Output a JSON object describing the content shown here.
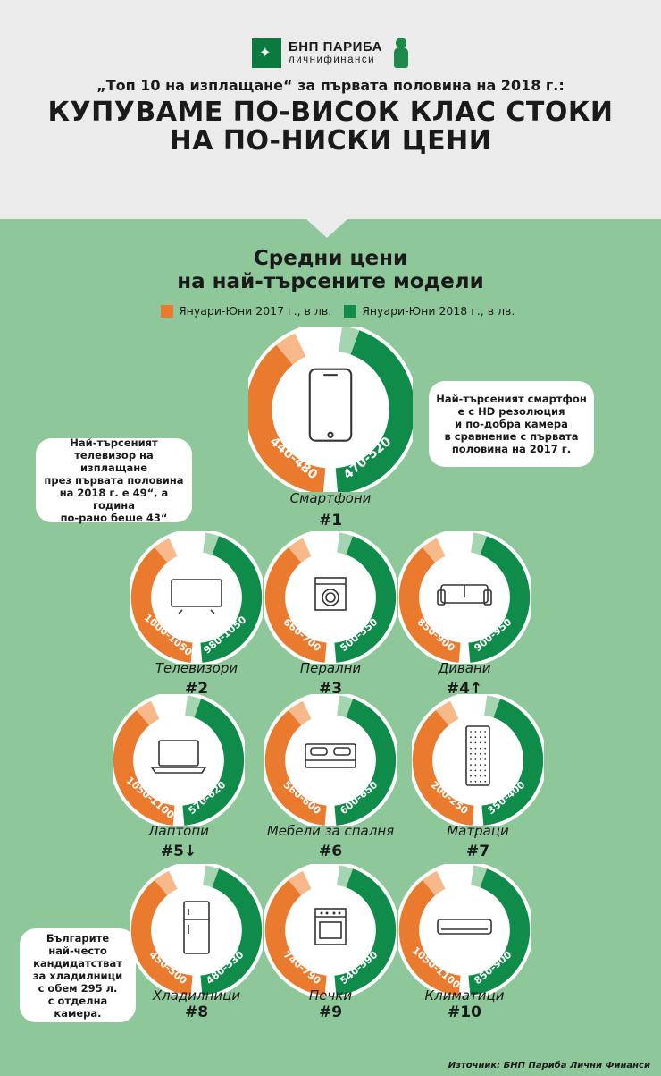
{
  "brand": {
    "name": "БНП ПАРИБА",
    "sub": "личнифинанси"
  },
  "subtitle": "„Топ 10 на изплащане“  за първата половина на 2018 г.:",
  "headline": [
    "КУПУВАМЕ ПО-ВИСОК КЛАС  СТОКИ",
    "НА ПО-НИСКИ  ЦЕНИ"
  ],
  "section_title": [
    "Средни цени",
    "на най-търсените модели"
  ],
  "legend": [
    {
      "label": "Януари-Юни 2017 г., в лв.",
      "color": "#ea7a2e"
    },
    {
      "label": "Януари-Юни 2018 г., в лв.",
      "color": "#0f8b4a"
    }
  ],
  "colors": {
    "orange": "#ea7a2e",
    "orange_light": "#f7b98a",
    "green": "#0f8b4a",
    "green_light": "#a5d4b0",
    "bg": "#8ec89a",
    "header": "#ebebeb"
  },
  "items": [
    {
      "name": "Смартфони",
      "rank": "#1",
      "price_2017": "440-480",
      "price_2018": "470-520",
      "icon": "smartphone-icon"
    },
    {
      "name": "Телевизори",
      "rank": "#2",
      "price_2017": "1000-1050",
      "price_2018": "980-1050",
      "icon": "tv-icon"
    },
    {
      "name": "Перални",
      "rank": "#3",
      "price_2017": "660-700",
      "price_2018": "500-550",
      "icon": "washing-machine-icon"
    },
    {
      "name": "Дивани",
      "rank": "#4↑",
      "price_2017": "850-900",
      "price_2018": "900-950",
      "icon": "sofa-icon"
    },
    {
      "name": "Лаптопи",
      "rank": "#5↓",
      "price_2017": "1050-1100",
      "price_2018": "570-620",
      "icon": "laptop-icon"
    },
    {
      "name": "Мебели за спалня",
      "rank": "#6",
      "price_2017": "560-600",
      "price_2018": "600-650",
      "icon": "bed-icon"
    },
    {
      "name": "Матраци",
      "rank": "#7",
      "price_2017": "200-250",
      "price_2018": "350-400",
      "icon": "mattress-icon"
    },
    {
      "name": "Хладилници",
      "rank": "#8",
      "price_2017": "450-500",
      "price_2018": "480-530",
      "icon": "fridge-icon"
    },
    {
      "name": "Печки",
      "rank": "#9",
      "price_2017": "740-790",
      "price_2018": "540-590",
      "icon": "stove-icon"
    },
    {
      "name": "Климатици",
      "rank": "#10",
      "price_2017": "1050-1100",
      "price_2018": "850-900",
      "icon": "air-conditioner-icon"
    }
  ],
  "bubbles": {
    "smartphone": [
      "Най-търсеният смартфон",
      "е с HD резолюция",
      "и по-добра камера",
      "в сравнение с първата",
      "половина на 2017 г."
    ],
    "tv": [
      "Най-търсеният",
      "телевизор на изплащане",
      "през първата половина",
      "на 2018 г. е 49“, а година",
      "по-рано беше 43“"
    ],
    "fridge": [
      "Българите",
      "най-често",
      "кандидатстват",
      "за хладилници",
      "с обем 295 л.",
      "с отделна камера."
    ]
  },
  "source": "Източник: БНП Париба Лични Финанси"
}
